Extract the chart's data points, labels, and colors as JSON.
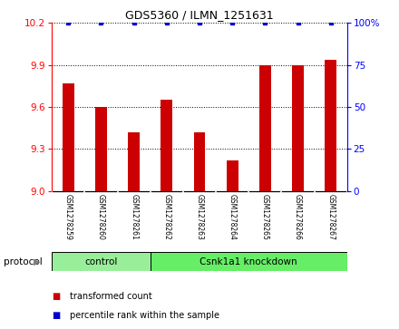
{
  "title": "GDS5360 / ILMN_1251631",
  "samples": [
    "GSM1278259",
    "GSM1278260",
    "GSM1278261",
    "GSM1278262",
    "GSM1278263",
    "GSM1278264",
    "GSM1278265",
    "GSM1278266",
    "GSM1278267"
  ],
  "red_values": [
    9.77,
    9.6,
    9.42,
    9.65,
    9.42,
    9.22,
    9.9,
    9.9,
    9.94
  ],
  "blue_values": [
    100,
    100,
    100,
    100,
    100,
    100,
    100,
    100,
    100
  ],
  "ylim_left": [
    9.0,
    10.2
  ],
  "ylim_right": [
    0,
    100
  ],
  "yticks_left": [
    9.0,
    9.3,
    9.6,
    9.9,
    10.2
  ],
  "yticks_right": [
    0,
    25,
    50,
    75,
    100
  ],
  "bar_color": "#CC0000",
  "dot_color": "#0000CC",
  "control_label": "control",
  "knockdown_label": "Csnk1a1 knockdown",
  "protocol_label": "protocol",
  "legend_red": "transformed count",
  "legend_blue": "percentile rank within the sample",
  "control_color": "#99EE99",
  "knockdown_color": "#66EE66",
  "label_bg_color": "#CCCCCC",
  "n_control": 3,
  "n_knockdown": 6
}
